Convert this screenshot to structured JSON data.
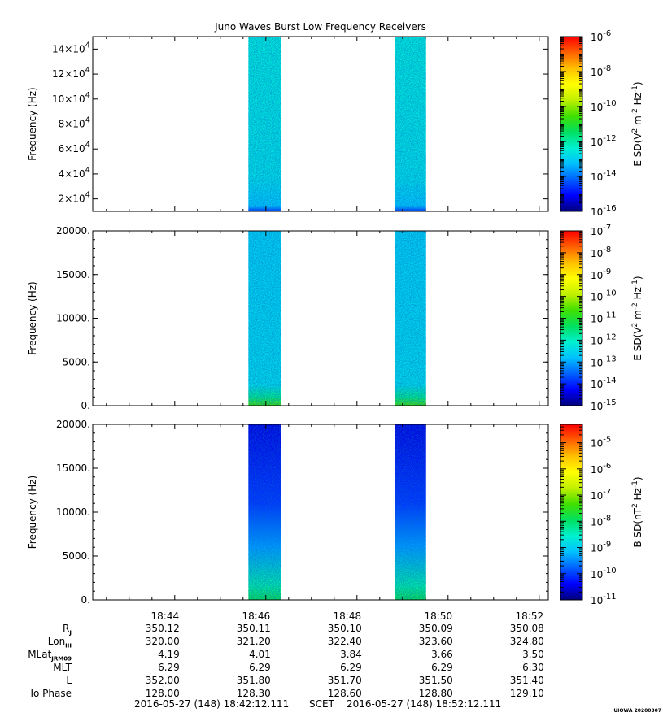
{
  "title": "Juno Waves Burst Low Frequency Receivers",
  "colors": {
    "colormap": [
      "#00007a",
      "#0000ff",
      "#0060ff",
      "#00c0ff",
      "#00f0d0",
      "#00e060",
      "#40e000",
      "#c0f000",
      "#ffff00",
      "#ffc000",
      "#ff6000",
      "#ff0000"
    ]
  },
  "chart_data": [
    {
      "type": "heatmap",
      "name": "panel-1",
      "ylabel": "Frequency (Hz)",
      "ylim": [
        10000,
        150000
      ],
      "yticks": [
        {
          "value": 20000,
          "mant": "2",
          "exp": "4"
        },
        {
          "value": 40000,
          "mant": "4",
          "exp": "4"
        },
        {
          "value": 60000,
          "mant": "6",
          "exp": "4"
        },
        {
          "value": 80000,
          "mant": "8",
          "exp": "4"
        },
        {
          "value": 100000,
          "mant": "10",
          "exp": "4"
        },
        {
          "value": 120000,
          "mant": "12",
          "exp": "4"
        },
        {
          "value": 140000,
          "mant": "14",
          "exp": "4"
        }
      ],
      "colorbar": {
        "label_parts": [
          "E SD(V",
          "2",
          " m",
          "-2",
          " Hz",
          "-1",
          ")"
        ],
        "log_range": [
          -16,
          -6
        ],
        "ticks": [
          {
            "value": -6,
            "label": "-6"
          },
          {
            "value": -8,
            "label": "-8"
          },
          {
            "value": -10,
            "label": "-10"
          },
          {
            "value": -12,
            "label": "-12"
          },
          {
            "value": -14,
            "label": "-14"
          },
          {
            "value": -16,
            "label": "-16"
          }
        ]
      },
      "bursts": [
        {
          "t_start": "18:45:37",
          "t_end": "18:46:20",
          "level": 0.33
        },
        {
          "t_start": "18:48:50",
          "t_end": "18:49:31",
          "level": 0.33
        }
      ]
    },
    {
      "type": "heatmap",
      "name": "panel-2",
      "ylabel": "Frequency (Hz)",
      "ylim": [
        0,
        20000
      ],
      "yticks": [
        {
          "value": 0,
          "label": "0."
        },
        {
          "value": 5000,
          "label": "5000."
        },
        {
          "value": 10000,
          "label": "10000."
        },
        {
          "value": 15000,
          "label": "15000."
        },
        {
          "value": 20000,
          "label": "20000."
        }
      ],
      "colorbar": {
        "label_parts": [
          "E SD(V",
          "2",
          " m",
          "-2",
          " Hz",
          "-1",
          ")"
        ],
        "log_range": [
          -15,
          -7
        ],
        "ticks": [
          {
            "value": -7,
            "label": "-7"
          },
          {
            "value": -8,
            "label": "-8"
          },
          {
            "value": -9,
            "label": "-9"
          },
          {
            "value": -10,
            "label": "-10"
          },
          {
            "value": -11,
            "label": "-11"
          },
          {
            "value": -12,
            "label": "-12"
          },
          {
            "value": -13,
            "label": "-13"
          },
          {
            "value": -14,
            "label": "-14"
          },
          {
            "value": -15,
            "label": "-15"
          }
        ]
      },
      "bursts": [
        {
          "t_start": "18:45:37",
          "t_end": "18:46:20",
          "level": 0.3
        },
        {
          "t_start": "18:48:50",
          "t_end": "18:49:31",
          "level": 0.3
        }
      ]
    },
    {
      "type": "heatmap",
      "name": "panel-3",
      "ylabel": "Frequency (Hz)",
      "ylim": [
        0,
        20000
      ],
      "yticks": [
        {
          "value": 0,
          "label": "0."
        },
        {
          "value": 5000,
          "label": "5000."
        },
        {
          "value": 10000,
          "label": "10000."
        },
        {
          "value": 15000,
          "label": "15000."
        },
        {
          "value": 20000,
          "label": "20000."
        }
      ],
      "colorbar": {
        "label_parts": [
          "B SD(nT",
          "2",
          " Hz",
          "-1",
          ")"
        ],
        "log_range": [
          -11,
          -4.3
        ],
        "ticks": [
          {
            "value": -5,
            "label": "-5"
          },
          {
            "value": -6,
            "label": "-6"
          },
          {
            "value": -7,
            "label": "-7"
          },
          {
            "value": -8,
            "label": "-8"
          },
          {
            "value": -9,
            "label": "-9"
          },
          {
            "value": -10,
            "label": "-10"
          },
          {
            "value": -11,
            "label": "-11"
          }
        ]
      },
      "bursts": [
        {
          "t_start": "18:45:37",
          "t_end": "18:46:20",
          "level": 0.12
        },
        {
          "t_start": "18:48:50",
          "t_end": "18:49:31",
          "level": 0.12
        }
      ]
    }
  ],
  "x_axis": {
    "tmin": "18:42:12",
    "tmax": "18:52:12",
    "ticks": [
      {
        "t": "18:44:00",
        "label": "18:44"
      },
      {
        "t": "18:46:00",
        "label": "18:46"
      },
      {
        "t": "18:48:00",
        "label": "18:48"
      },
      {
        "t": "18:50:00",
        "label": "18:50"
      },
      {
        "t": "18:52:00",
        "label": "18:52"
      }
    ]
  },
  "ephemeris": {
    "labels": [
      {
        "main": "R",
        "sub": "J"
      },
      {
        "main": "Lon",
        "sub": "III"
      },
      {
        "main": "MLat",
        "sub": "JRM09"
      },
      {
        "main": "MLT",
        "sub": ""
      },
      {
        "main": "L",
        "sub": ""
      },
      {
        "main": "Io Phase",
        "sub": ""
      }
    ],
    "rows": [
      [
        "350.12",
        "350.11",
        "350.10",
        "350.09",
        "350.08"
      ],
      [
        "320.00",
        "321.20",
        "322.40",
        "323.60",
        "324.80"
      ],
      [
        "4.19",
        "4.01",
        "3.84",
        "3.66",
        "3.50"
      ],
      [
        "6.29",
        "6.29",
        "6.29",
        "6.29",
        "6.30"
      ],
      [
        "352.00",
        "351.80",
        "351.70",
        "351.50",
        "351.40"
      ],
      [
        "128.00",
        "128.30",
        "128.60",
        "128.80",
        "129.10"
      ]
    ]
  },
  "footer": {
    "start": "2016-05-27 (148) 18:42:12.111",
    "scet": "SCET",
    "end": "2016-05-27 (148) 18:52:12.111"
  },
  "stamp": "UIOWA 20200307"
}
